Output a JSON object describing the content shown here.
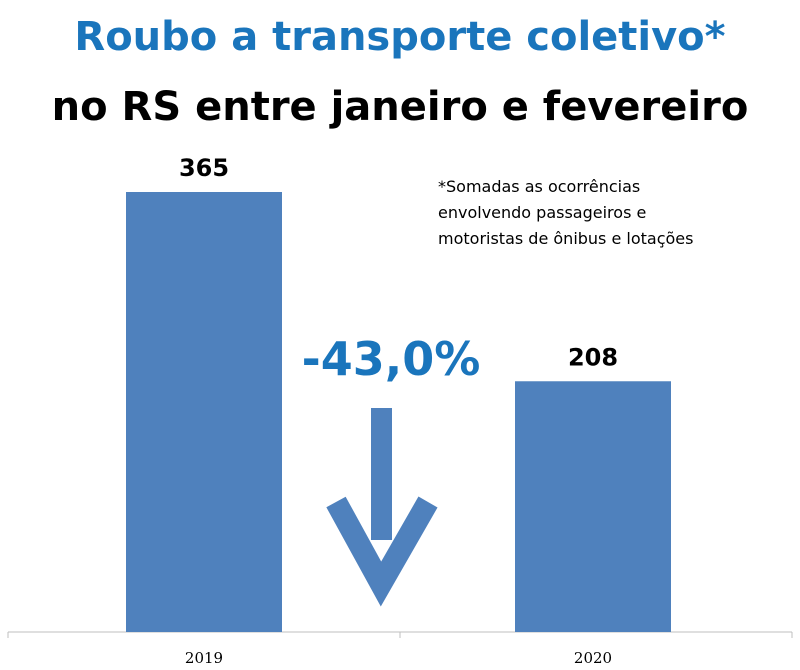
{
  "title": "Roubo a transporte coletivo*",
  "subtitle": "no RS entre janeiro e fevereiro",
  "note_lines": [
    "*Somadas as ocorrências",
    "envolvendo passageiros e",
    "motoristas de ônibus e lotações"
  ],
  "change_label": "-43,0%",
  "colors": {
    "bar": "#4f81bd",
    "accent": "#1a75bc",
    "arrow": "#4f81bd"
  },
  "chart_data": {
    "type": "bar",
    "categories": [
      "2019",
      "2020"
    ],
    "values": [
      365,
      208
    ],
    "data_labels": [
      "365",
      "208"
    ],
    "title": "Roubo a transporte coletivo*",
    "subtitle": "no RS entre janeiro e fevereiro",
    "xlabel": "",
    "ylabel": "",
    "ylim": [
      0,
      400
    ],
    "grid": false,
    "legend": "none"
  }
}
